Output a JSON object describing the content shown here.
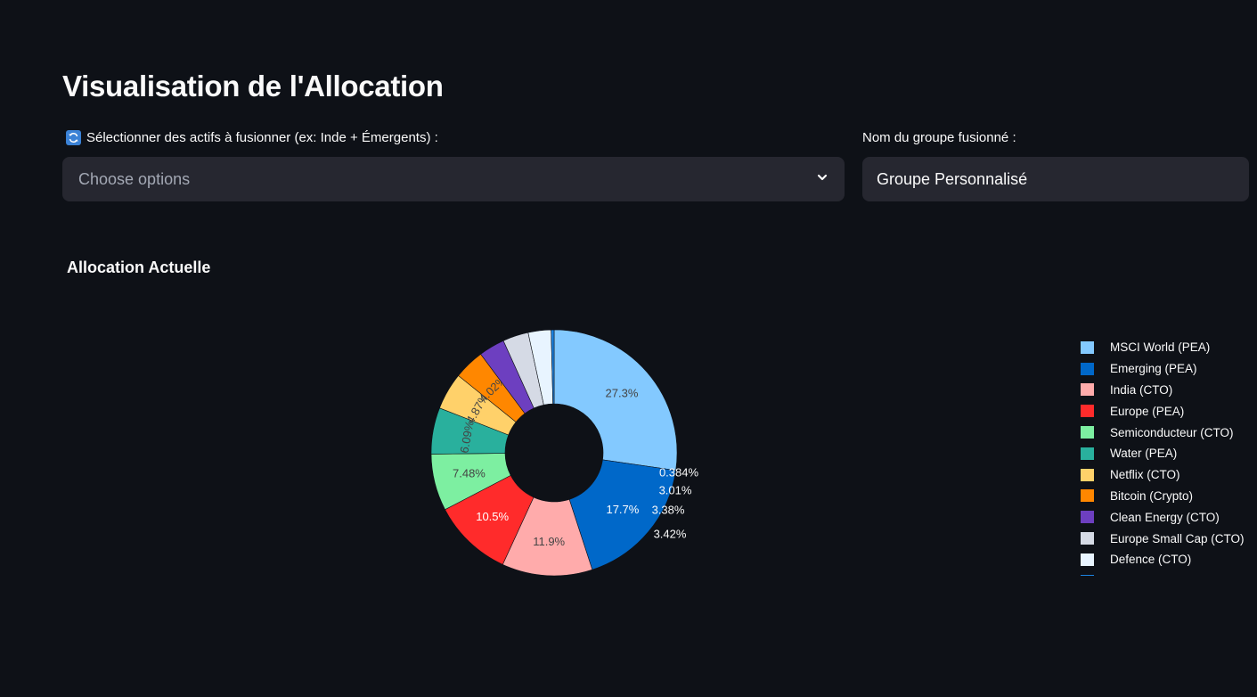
{
  "page": {
    "title": "Visualisation de l'Allocation"
  },
  "merge": {
    "icon": "refresh-icon",
    "label": "Sélectionner des actifs à fusionner (ex: Inde + Émergents) :",
    "placeholder": "Choose options"
  },
  "group": {
    "label": "Nom du groupe fusionné :",
    "value": "Groupe Personnalisé"
  },
  "chart_data": {
    "type": "pie",
    "hole": true,
    "title": "Allocation Actuelle",
    "legend_position": "right",
    "slices": [
      {
        "label": "MSCI World (PEA)",
        "value": 27.3,
        "text": "27.3%",
        "color": "#83c9ff"
      },
      {
        "label": "Emerging (PEA)",
        "value": 17.7,
        "text": "17.7%",
        "color": "#0068c9"
      },
      {
        "label": "India (CTO)",
        "value": 11.9,
        "text": "11.9%",
        "color": "#ffabab"
      },
      {
        "label": "Europe (PEA)",
        "value": 10.5,
        "text": "10.5%",
        "color": "#ff2b2b"
      },
      {
        "label": "Semiconducteur (CTO)",
        "value": 7.48,
        "text": "7.48%",
        "color": "#7defa1"
      },
      {
        "label": "Water (PEA)",
        "value": 6.09,
        "text": "6.09%",
        "color": "#29b09d"
      },
      {
        "label": "Netflix (CTO)",
        "value": 4.87,
        "text": "4.87%",
        "color": "#ffd16a"
      },
      {
        "label": "Bitcoin (Crypto)",
        "value": 4.02,
        "text": "4.02%",
        "color": "#ff8700"
      },
      {
        "label": "Clean Energy (CTO)",
        "value": 3.42,
        "text": "3.42%",
        "color": "#6d3fc0"
      },
      {
        "label": "Europe Small Cap (CTO)",
        "value": 3.38,
        "text": "3.38%",
        "color": "#d5dae5"
      },
      {
        "label": "Defence (CTO)",
        "value": 3.01,
        "text": "3.01%",
        "color": "#e8f4ff"
      },
      {
        "label": "",
        "value": 0.384,
        "text": "0.384%",
        "color": "#1c83e1"
      }
    ]
  }
}
